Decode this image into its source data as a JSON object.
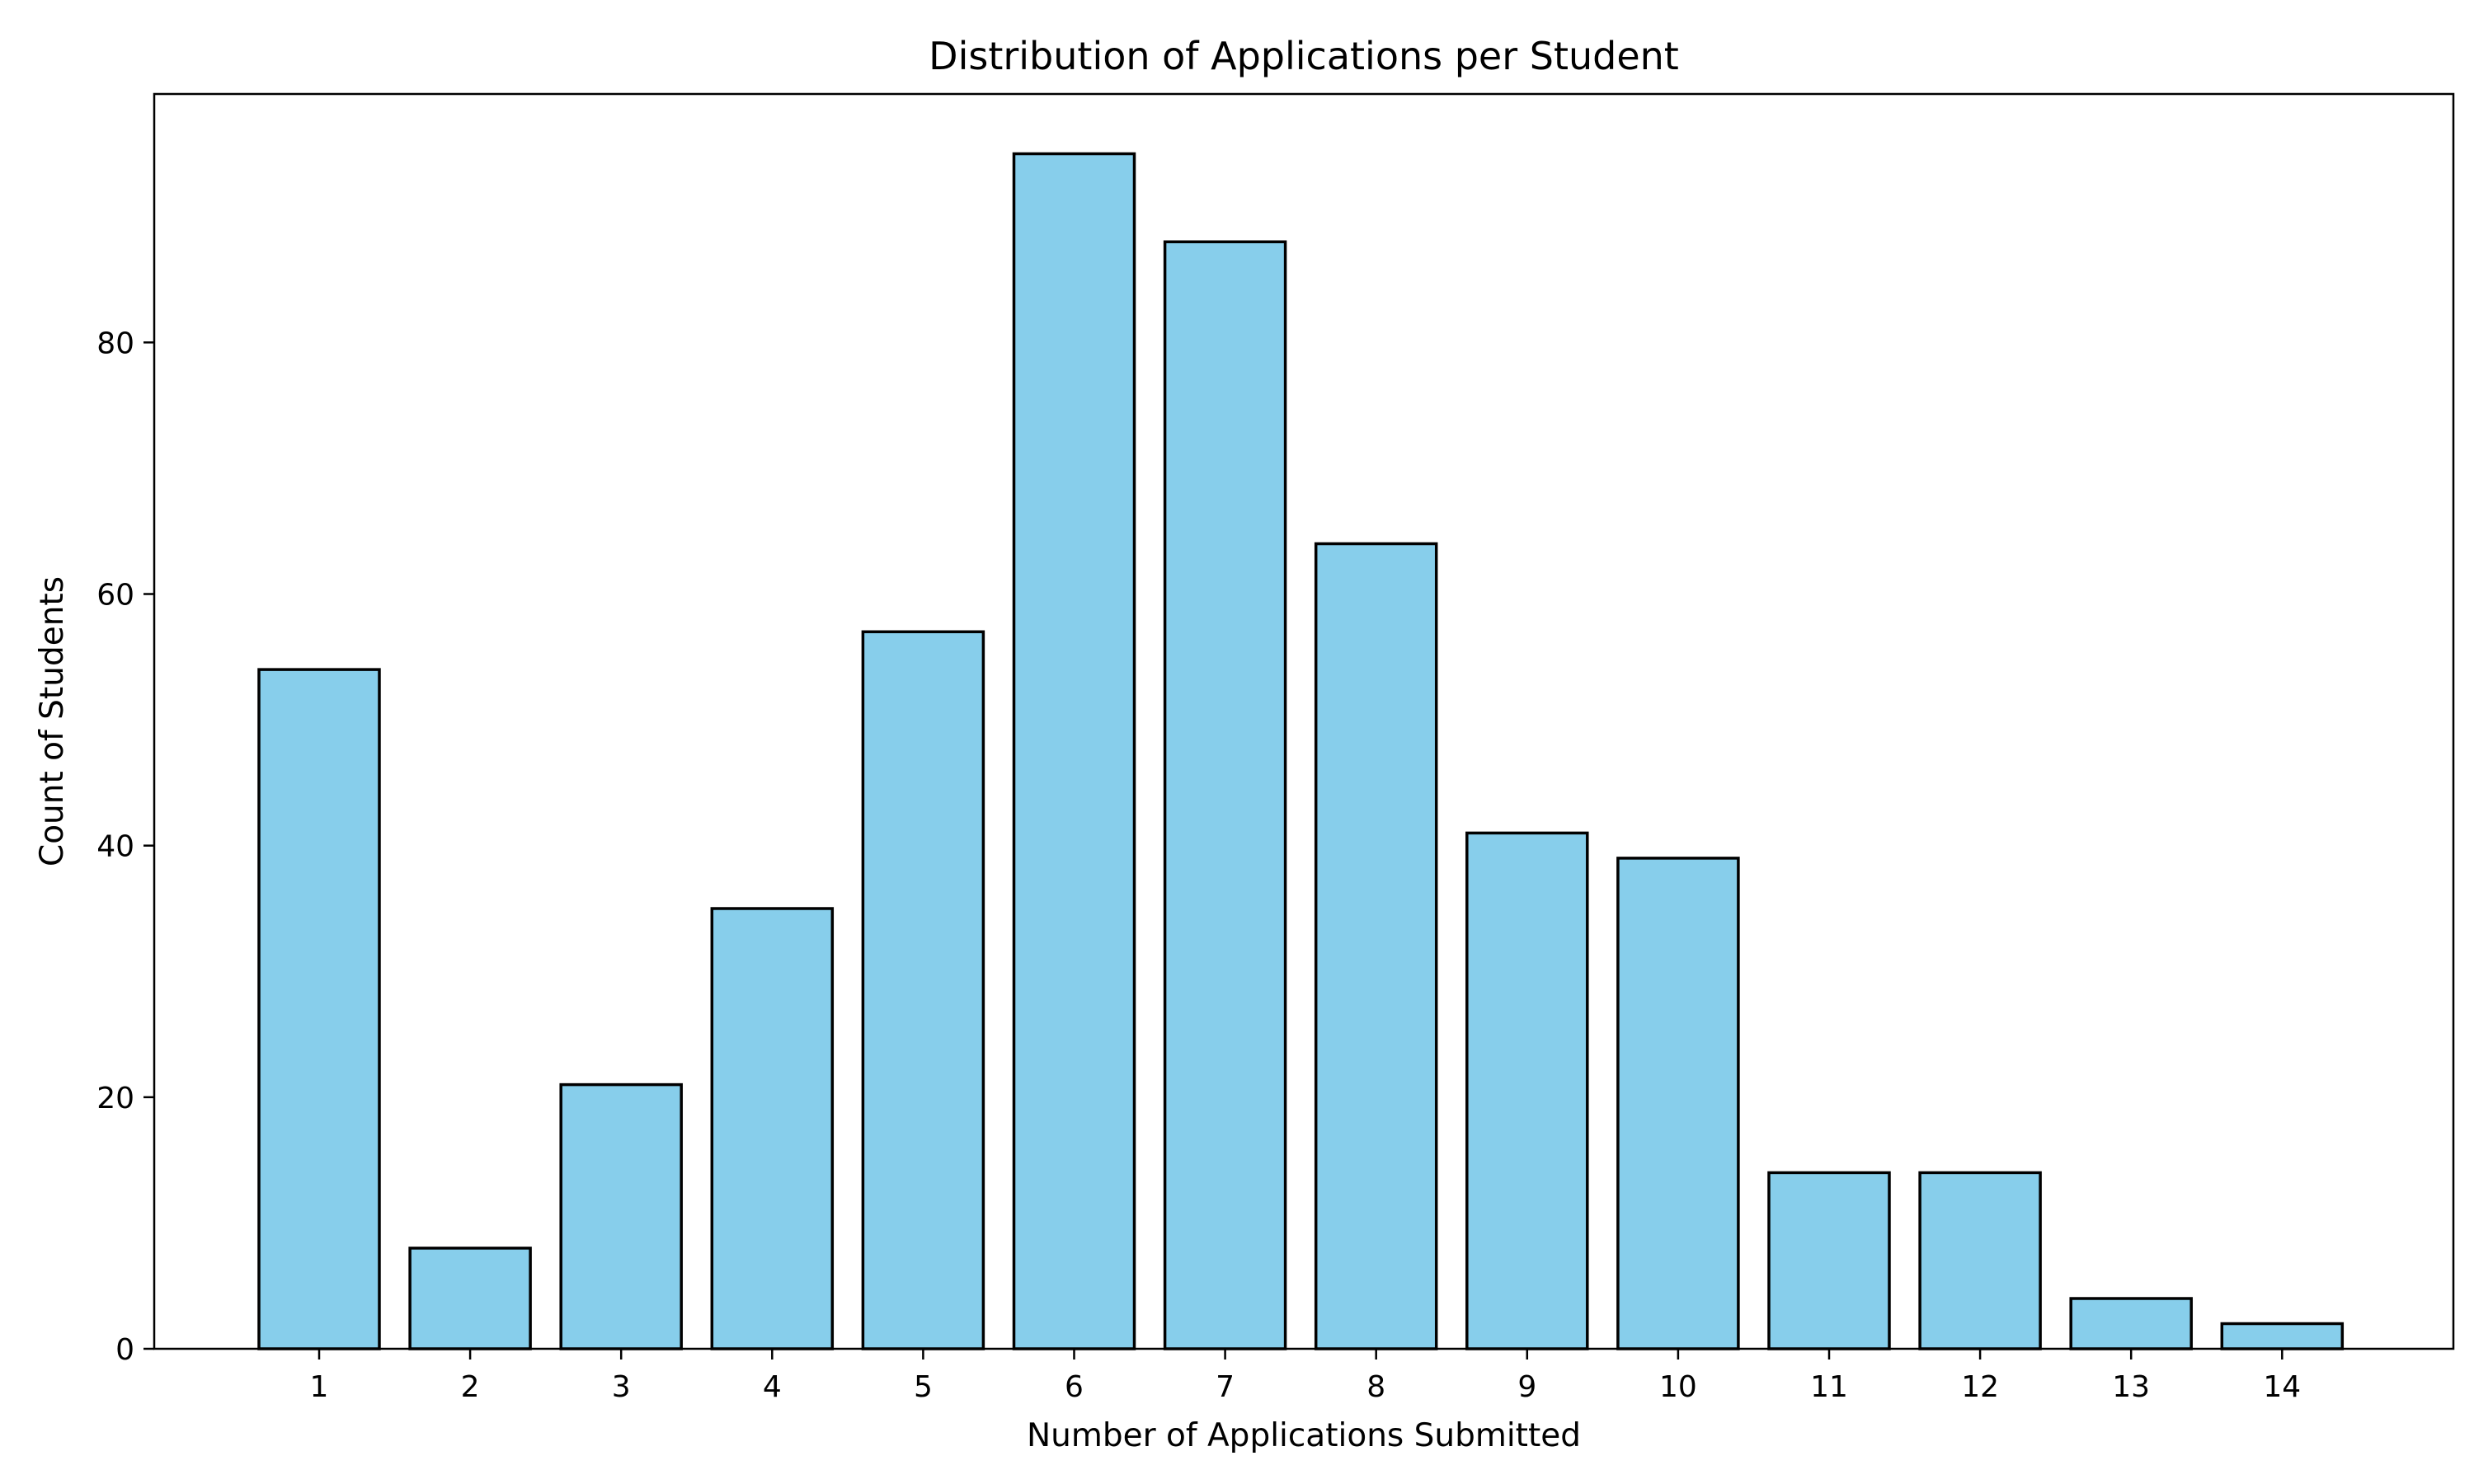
{
  "chart_data": {
    "type": "bar",
    "title": "Distribution of Applications per Student",
    "xlabel": "Number of Applications Submitted",
    "ylabel": "Count of Students",
    "categories": [
      "1",
      "2",
      "3",
      "4",
      "5",
      "6",
      "7",
      "8",
      "9",
      "10",
      "11",
      "12",
      "13",
      "14"
    ],
    "values": [
      54,
      8,
      21,
      35,
      57,
      95,
      88,
      64,
      41,
      39,
      14,
      14,
      4,
      2
    ],
    "y_ticks": [
      "0",
      "20",
      "40",
      "60",
      "80"
    ],
    "ylim": [
      0,
      99.75
    ],
    "grid": false,
    "legend": "none",
    "bar_color": "#87CEEB",
    "edge_color": "#000000"
  }
}
